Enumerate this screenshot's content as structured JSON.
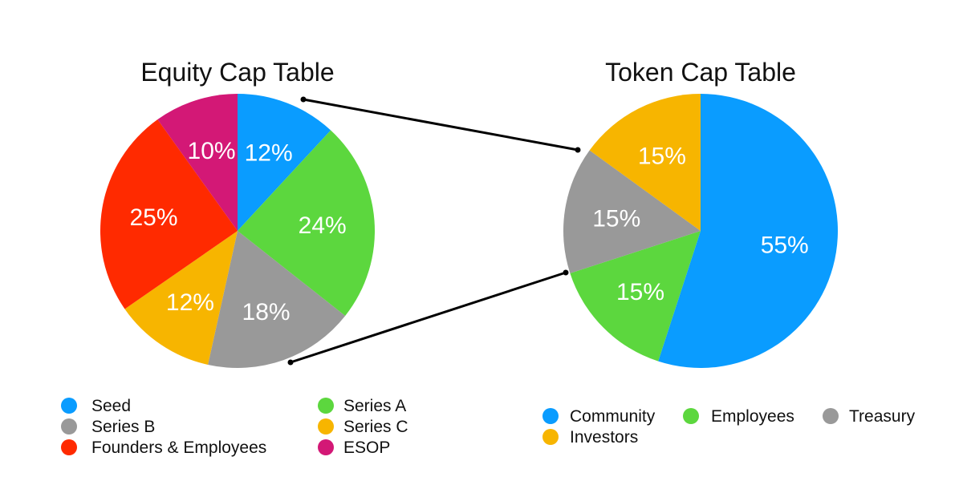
{
  "chart_data": [
    {
      "type": "pie",
      "title": "Equity Cap Table",
      "slices": [
        {
          "name": "Seed",
          "value": 12,
          "label": "12%",
          "color": "#0A9CFF"
        },
        {
          "name": "Series A",
          "value": 24,
          "label": "24%",
          "color": "#5CD73E"
        },
        {
          "name": "Series B",
          "value": 18,
          "label": "18%",
          "color": "#999999"
        },
        {
          "name": "Series C",
          "value": 12,
          "label": "12%",
          "color": "#F7B500"
        },
        {
          "name": "Founders & Employees",
          "value": 25,
          "label": "25%",
          "color": "#FF2A00"
        },
        {
          "name": "ESOP",
          "value": 10,
          "label": "10%",
          "color": "#D31876"
        }
      ],
      "start_angle_deg": 0,
      "direction": "clockwise",
      "legend": {
        "placement": "bottom",
        "columns": 2,
        "order": [
          "Seed",
          "Series A",
          "Series B",
          "Series C",
          "Founders & Employees",
          "ESOP"
        ]
      }
    },
    {
      "type": "pie",
      "title": "Token Cap Table",
      "slices": [
        {
          "name": "Community",
          "value": 55,
          "label": "55%",
          "color": "#0A9CFF"
        },
        {
          "name": "Employees",
          "value": 15,
          "label": "15%",
          "color": "#5CD73E"
        },
        {
          "name": "Treasury",
          "value": 15,
          "label": "15%",
          "color": "#999999"
        },
        {
          "name": "Investors",
          "value": 15,
          "label": "15%",
          "color": "#F7B500"
        }
      ],
      "start_angle_deg": 0,
      "direction": "clockwise",
      "legend": {
        "placement": "bottom",
        "columns": 3,
        "order": [
          "Community",
          "Employees",
          "Treasury",
          "Investors"
        ]
      }
    }
  ],
  "connector": {
    "color": "#000000",
    "from": "Equity Cap Table",
    "to": "Token Cap Table"
  }
}
